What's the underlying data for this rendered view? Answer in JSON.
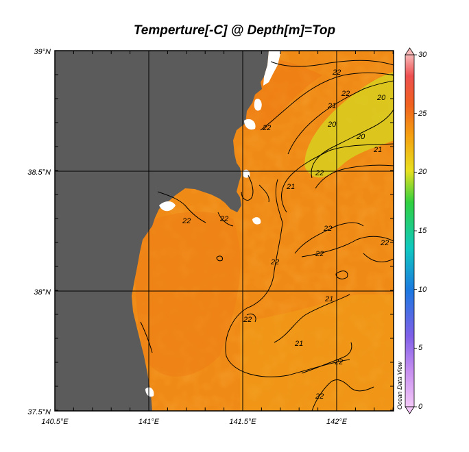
{
  "map": {
    "title": "Temperture[-C] @ Depth[m]=Top",
    "lat_labels": [
      "39°N",
      "38.5°N",
      "38°N",
      "37.5°N"
    ],
    "lon_labels": [
      "140.5°E",
      "141°E",
      "141.5°E",
      "142°E"
    ],
    "contour_labels": [
      "22",
      "22",
      "21",
      "20",
      "20",
      "21",
      "20",
      "22",
      "21",
      "22",
      "22",
      "22",
      "22",
      "21",
      "22",
      "22",
      "21",
      "22",
      "22",
      "22",
      "22"
    ],
    "colorbar_ticks": [
      "30",
      "25",
      "20",
      "15",
      "10",
      "5",
      "0"
    ],
    "watermark": "Ocean Data View",
    "colors": {
      "land": "#5b5b5b",
      "ocean_main": "#f08a16",
      "ocean_warm": "#ee7a14",
      "ocean_cool": "#f2a818",
      "ocean_coldest": "#d8d020",
      "contour": "#000000"
    }
  }
}
